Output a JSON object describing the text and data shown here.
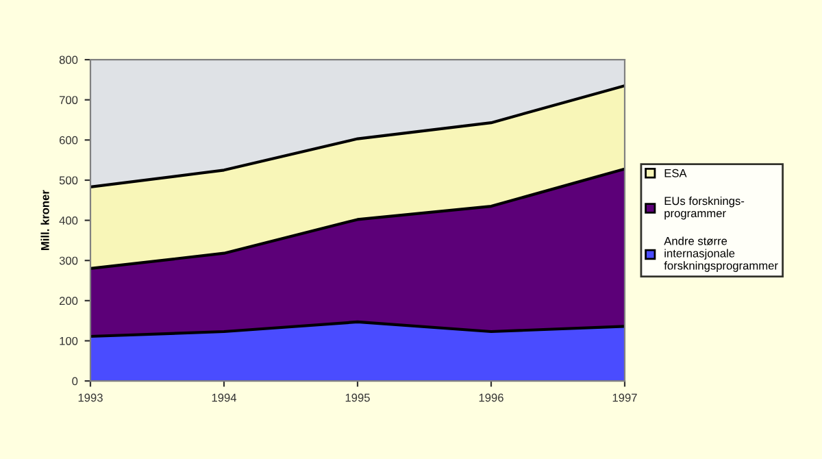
{
  "chart_data": {
    "type": "area",
    "stacked": true,
    "ylabel": "Mill. kroner",
    "x": [
      1993,
      1994,
      1995,
      1996,
      1997
    ],
    "series": [
      {
        "name": "Andre større internasjonale forskningsprogrammer",
        "color": "#4a4cff",
        "values": [
          111,
          123,
          147,
          123,
          136
        ]
      },
      {
        "name": "EUs forsknings-programmer",
        "color": "#5c0078",
        "values": [
          169,
          195,
          255,
          312,
          392
        ]
      },
      {
        "name": "ESA",
        "color": "#f8f6b8",
        "values": [
          203,
          207,
          201,
          208,
          207
        ]
      }
    ],
    "xlim": [
      1993,
      1997
    ],
    "xticks": [
      1993,
      1994,
      1995,
      1996,
      1997
    ],
    "ylim": [
      0,
      800
    ],
    "yticks": [
      0,
      100,
      200,
      300,
      400,
      500,
      600,
      700,
      800
    ],
    "grid": false,
    "legend": "right"
  }
}
